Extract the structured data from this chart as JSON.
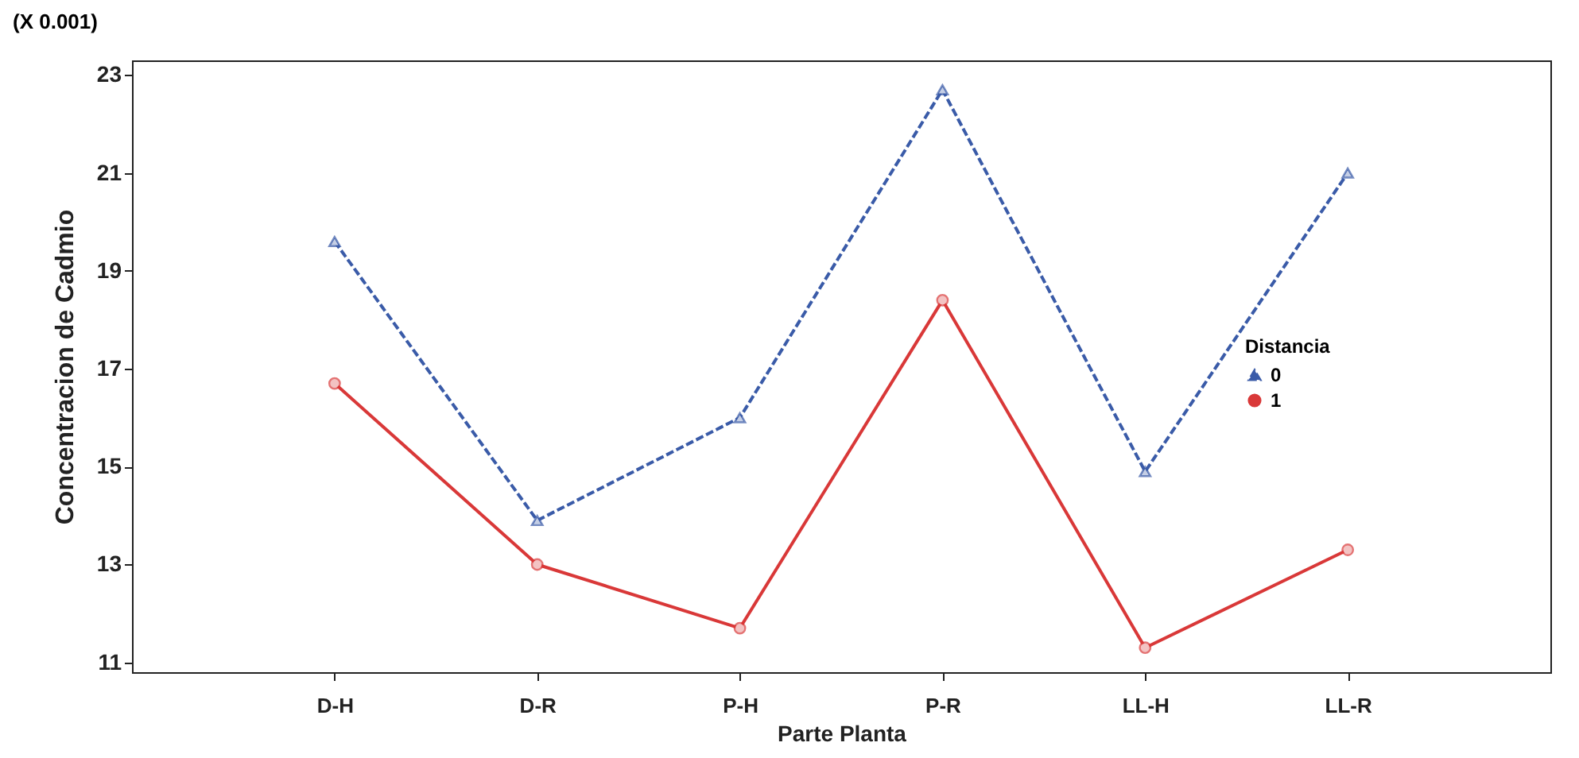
{
  "chart_data": {
    "type": "line",
    "xlabel": "Parte Planta",
    "ylabel": "Concentracion de Cadmio",
    "legend_title": "Distancia",
    "annotations": [
      "(X 0.001)"
    ],
    "categories": [
      "D-H",
      "D-R",
      "P-H",
      "P-R",
      "LL-H",
      "LL-R"
    ],
    "series": [
      {
        "name": "0",
        "color": "#3a5ba8",
        "marker": "triangle",
        "line_style": "dashed",
        "values": [
          19.6,
          13.9,
          16.0,
          22.7,
          14.9,
          21.0
        ]
      },
      {
        "name": "1",
        "color": "#d93838",
        "marker": "circle",
        "line_style": "solid",
        "values": [
          16.7,
          13.0,
          11.7,
          18.4,
          11.3,
          13.3
        ]
      }
    ],
    "ylim": [
      10.8,
      23.3
    ],
    "yticks": [
      11,
      13,
      15,
      17,
      19,
      21,
      23
    ],
    "grid": false,
    "legend": "right"
  }
}
